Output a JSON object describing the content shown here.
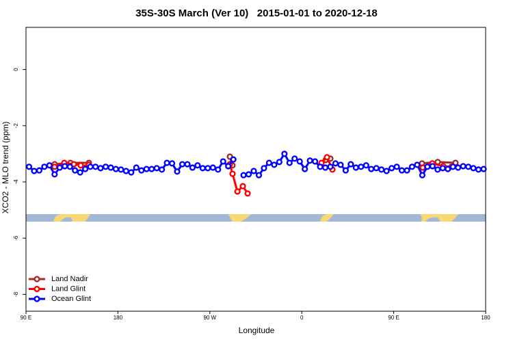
{
  "chart_data": {
    "type": "line",
    "title": "35S-30S March (Ver 10)   2015-01-01 to 2020-12-18",
    "x_label": "Longitude",
    "y_label": "XCO2 - MLO trend (ppm)",
    "xlim": [
      90,
      540
    ],
    "ylim": [
      -8.6,
      1.5
    ],
    "xticks": [
      {
        "value": 90,
        "label": "90 E"
      },
      {
        "value": 180,
        "label": "180"
      },
      {
        "value": 270,
        "label": "90 W"
      },
      {
        "value": 360,
        "label": "0"
      },
      {
        "value": 450,
        "label": "90 E"
      },
      {
        "value": 540,
        "label": "180"
      }
    ],
    "yticks": [
      0,
      -2,
      -4,
      -6,
      -8
    ],
    "legend": "bottomleft",
    "series": [
      {
        "name": "Land Nadir",
        "color": "#a52a2a",
        "x": [
          118.1,
          133.5,
          151.6,
          null,
          289.6,
          292.2,
          null,
          383.3,
          388,
          null,
          477.7,
          493.1,
          510.5
        ],
        "values": [
          -3.37,
          -3.32,
          -3.32,
          null,
          -3.1,
          -3.41,
          null,
          -3.22,
          -3.17,
          null,
          -3.34,
          -3.29,
          -3.32
        ]
      },
      {
        "name": "Land Glint",
        "color": "#ff0000",
        "x": [
          118,
          127.5,
          136.9,
          143.6,
          148.3,
          151.6,
          null,
          289.6,
          292.2,
          297,
          302.3,
          307,
          null,
          379.3,
          384.7,
          390,
          null,
          478.4,
          487.8,
          498.5,
          506.6
        ],
        "values": [
          -3.46,
          -3.32,
          -3.37,
          -3.41,
          -3.49,
          -3.39,
          null,
          -3.37,
          -3.71,
          -4.34,
          -4.15,
          -4.41,
          null,
          -3.32,
          -3.12,
          -3.56,
          null,
          -3.49,
          -3.34,
          -3.44,
          -3.46
        ]
      },
      {
        "name": "Ocean Glint",
        "color": "#0000ff",
        "x": [
          93,
          98,
          103,
          108,
          113,
          118,
          123,
          128,
          133,
          138,
          143,
          148,
          153,
          158,
          163,
          168,
          173,
          178,
          183,
          188,
          193,
          198,
          203,
          208,
          213,
          218,
          223,
          228,
          233,
          238,
          243,
          248,
          253,
          258,
          263,
          268,
          273,
          278,
          283,
          288,
          293,
          298,
          303,
          308,
          313,
          318,
          323,
          328,
          333,
          338,
          343,
          348,
          353,
          358,
          363,
          368,
          373,
          378,
          383,
          388,
          393,
          398,
          403,
          408,
          413,
          418,
          423,
          428,
          433,
          438,
          443,
          448,
          453,
          458,
          463,
          468,
          473,
          478,
          483,
          488,
          493,
          498,
          503,
          508,
          513,
          518,
          523,
          528,
          533,
          538
        ],
        "values": [
          -3.46,
          -3.61,
          -3.59,
          -3.46,
          -3.41,
          -3.73,
          -3.49,
          -3.44,
          -3.46,
          -3.59,
          -3.66,
          -3.54,
          -3.46,
          -3.46,
          -3.51,
          -3.46,
          -3.49,
          -3.54,
          -3.56,
          -3.61,
          -3.66,
          -3.49,
          -3.59,
          -3.54,
          -3.54,
          -3.51,
          -3.56,
          -3.32,
          -3.34,
          -3.63,
          -3.37,
          -3.37,
          -3.49,
          -3.41,
          -3.51,
          -3.51,
          -3.49,
          -3.56,
          -3.27,
          -3.44,
          -3.2,
          null,
          -3.76,
          -3.73,
          -3.61,
          -3.76,
          -3.51,
          -3.32,
          -3.39,
          -3.29,
          -3.0,
          -3.32,
          -3.17,
          -3.27,
          -3.54,
          -3.24,
          -3.27,
          -3.46,
          -3.49,
          -3.46,
          -3.34,
          -3.39,
          -3.59,
          -3.37,
          -3.49,
          -3.46,
          -3.41,
          -3.54,
          -3.51,
          -3.56,
          -3.61,
          -3.51,
          -3.46,
          -3.59,
          -3.59,
          -3.46,
          -3.39,
          -3.76,
          -3.46,
          -3.44,
          -3.56,
          -3.51,
          -3.54,
          -3.46,
          -3.49,
          -3.44,
          -3.46,
          -3.51,
          -3.56,
          -3.54
        ]
      }
    ]
  }
}
